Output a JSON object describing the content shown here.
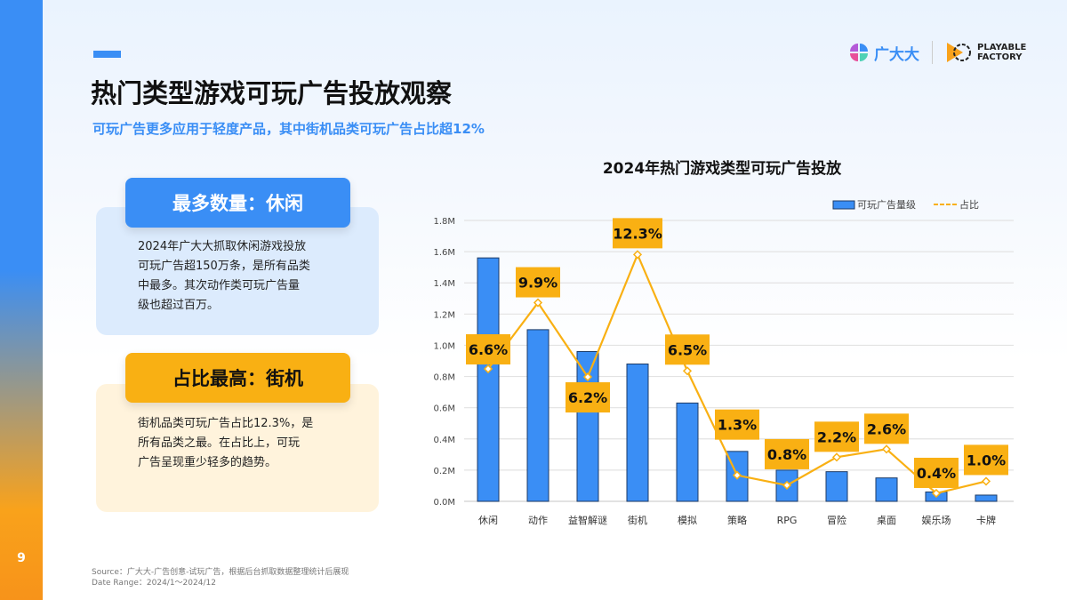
{
  "page_number": "9",
  "title": "热门类型游戏可玩广告投放观察",
  "subtitle": "可玩广告更多应用于轻度产品，其中街机品类可玩广告占比超12%",
  "logos": {
    "gdd": "广大大",
    "pf_line1": "PLAYABLE",
    "pf_line2": "FACTORY"
  },
  "cards": [
    {
      "heading": "最多数量：休闲",
      "lines": [
        "2024年广大大抓取休闲游戏投放",
        "可玩广告超150万条，是所有品类",
        "中最多。其次动作类可玩广告量",
        "级也超过百万。"
      ],
      "head_color": "#3a8ef5",
      "body_color": "#dcebfd"
    },
    {
      "heading": "占比最高：街机",
      "lines": [
        "街机品类可玩广告占比12.3%，是",
        "所有品类之最。在占比上，可玩",
        "广告呈现重少轻多的趋势。"
      ],
      "head_color": "#f9b013",
      "body_color": "#fff3dc"
    }
  ],
  "source": {
    "line1": "Source：广大大-广告创意-试玩广告，根据后台抓取数据整理统计后展现",
    "line2": "Date Range：2024/1～2024/12"
  },
  "chart_data": {
    "type": "bar+line",
    "title": "2024年热门游戏类型可玩广告投放",
    "categories": [
      "休闲",
      "动作",
      "益智解谜",
      "街机",
      "模拟",
      "策略",
      "RPG",
      "冒险",
      "桌面",
      "娱乐场",
      "卡牌"
    ],
    "series": [
      {
        "name": "可玩广告量级",
        "type": "bar",
        "axis": "left",
        "color": "#3a8ef5",
        "values": [
          1.56,
          1.1,
          0.96,
          0.88,
          0.63,
          0.32,
          0.2,
          0.19,
          0.15,
          0.06,
          0.04
        ]
      },
      {
        "name": "占比",
        "type": "line",
        "axis": "right-hidden",
        "color": "#f9b013",
        "values": [
          6.6,
          9.9,
          6.2,
          12.3,
          6.5,
          1.3,
          0.8,
          2.2,
          2.6,
          0.4,
          1.0
        ],
        "labels": [
          "6.6%",
          "9.9%",
          "6.2%",
          "12.3%",
          "6.5%",
          "1.3%",
          "0.8%",
          "2.2%",
          "2.6%",
          "0.4%",
          "1.0%"
        ]
      }
    ],
    "yticks": [
      "0.0M",
      "0.2M",
      "0.4M",
      "0.6M",
      "0.8M",
      "1.0M",
      "1.2M",
      "1.4M",
      "1.6M",
      "1.8M"
    ],
    "ylim": [
      0,
      1.8
    ],
    "y2lim": [
      0,
      14
    ],
    "grid": true,
    "legend": "top-right"
  }
}
